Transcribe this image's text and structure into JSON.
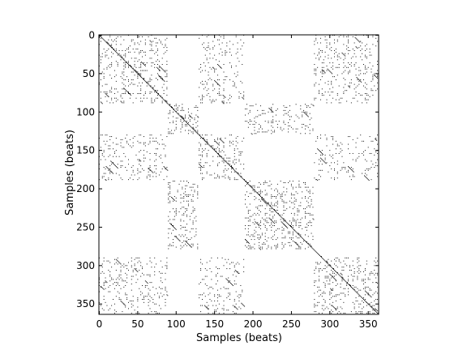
{
  "chart_data": {
    "type": "heatmap",
    "title": "",
    "xlabel": "Samples (beats)",
    "ylabel": "Samples (beats)",
    "xlim": [
      0,
      364
    ],
    "ylim": [
      364,
      0
    ],
    "x_ticks": [
      0,
      50,
      100,
      150,
      200,
      250,
      300,
      350
    ],
    "y_ticks": [
      0,
      50,
      100,
      150,
      200,
      250,
      300,
      350
    ],
    "grid": false,
    "colormap": {
      "on": "#000000",
      "off": "#ffffff"
    },
    "value_encoding": "binary self-similarity (recurrence) matrix; black = similar",
    "blocks": [
      {
        "x": [
          0,
          90
        ],
        "y": [
          0,
          90
        ],
        "density": 0.3
      },
      {
        "x": [
          0,
          90
        ],
        "y": [
          130,
          190
        ],
        "density": 0.26
      },
      {
        "x": [
          0,
          90
        ],
        "y": [
          290,
          363
        ],
        "density": 0.26
      },
      {
        "x": [
          90,
          130
        ],
        "y": [
          90,
          130
        ],
        "density": 0.4
      },
      {
        "x": [
          90,
          130
        ],
        "y": [
          190,
          280
        ],
        "density": 0.34
      },
      {
        "x": [
          130,
          190
        ],
        "y": [
          0,
          90
        ],
        "density": 0.26
      },
      {
        "x": [
          130,
          190
        ],
        "y": [
          130,
          190
        ],
        "density": 0.32
      },
      {
        "x": [
          130,
          190
        ],
        "y": [
          290,
          363
        ],
        "density": 0.22
      },
      {
        "x": [
          190,
          280
        ],
        "y": [
          90,
          130
        ],
        "density": 0.32
      },
      {
        "x": [
          190,
          280
        ],
        "y": [
          190,
          280
        ],
        "density": 0.4
      },
      {
        "x": [
          280,
          363
        ],
        "y": [
          0,
          90
        ],
        "density": 0.26
      },
      {
        "x": [
          280,
          363
        ],
        "y": [
          130,
          190
        ],
        "density": 0.22
      },
      {
        "x": [
          280,
          363
        ],
        "y": [
          290,
          363
        ],
        "density": 0.34
      }
    ],
    "diagonal": {
      "from": 0,
      "to": 363
    }
  }
}
